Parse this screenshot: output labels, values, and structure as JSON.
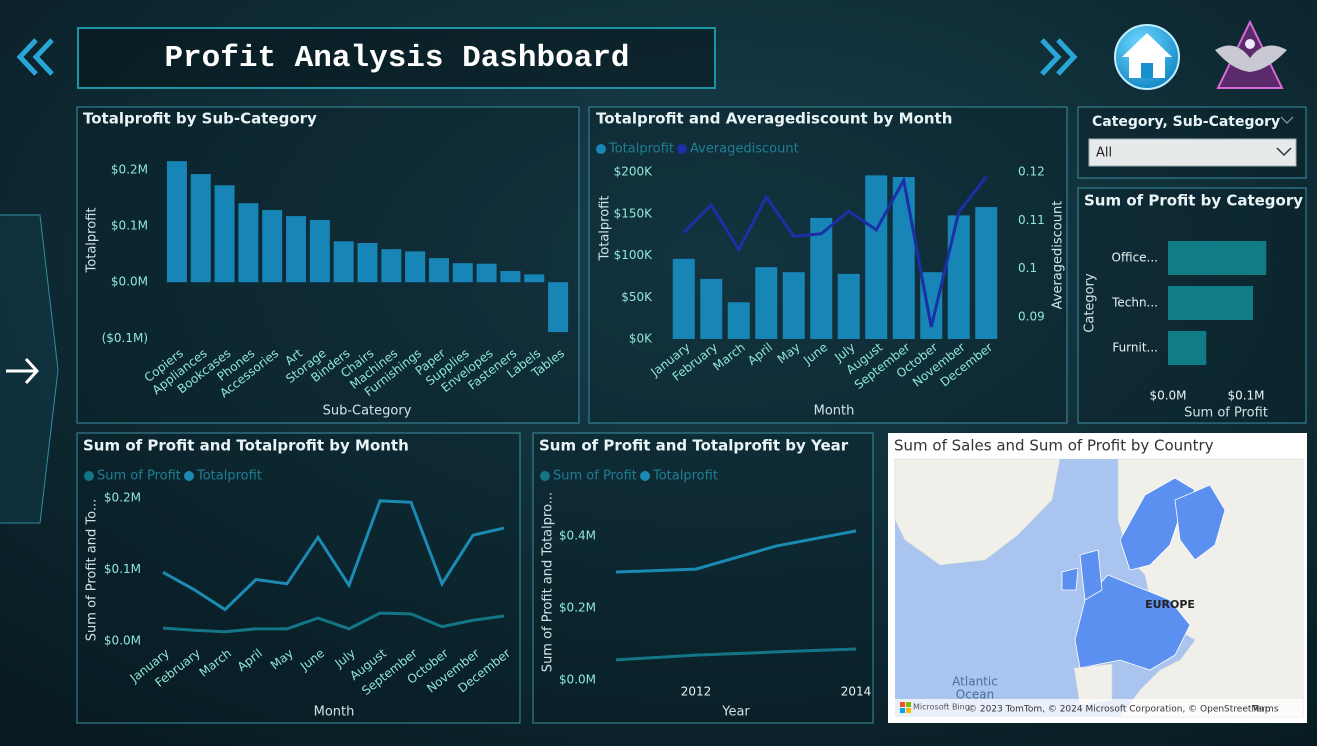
{
  "header": {
    "title": "Profit Analysis Dashboard"
  },
  "slicer": {
    "label": "Category, Sub-Category",
    "value": "All"
  },
  "chart_data": [
    {
      "type": "bar",
      "title": "Totalprofit by Sub-Category",
      "x_label": "Sub-Category",
      "y_label": "Totalprofit",
      "color": "#1786b6",
      "categories": [
        "Copiers",
        "Appliances",
        "Bookcases",
        "Phones",
        "Accessories",
        "Art",
        "Storage",
        "Binders",
        "Chairs",
        "Machines",
        "Furnishings",
        "Paper",
        "Supplies",
        "Envelopes",
        "Fasteners",
        "Labels",
        "Tables"
      ],
      "values": [
        216000,
        193000,
        173000,
        141000,
        129000,
        118000,
        111000,
        73000,
        70000,
        59000,
        55000,
        43000,
        34000,
        33000,
        20000,
        14000,
        -89000
      ],
      "ylim": [
        -112000,
        227000
      ],
      "yticks": [
        {
          "value": -100000,
          "label": "($0.1M)"
        },
        {
          "value": 0,
          "label": "$0.0M"
        },
        {
          "value": 100000,
          "label": "$0.1M"
        },
        {
          "value": 200000,
          "label": "$0.2M"
        }
      ]
    },
    {
      "type": "combo",
      "title": "Totalprofit and Averagediscount by Month",
      "x_label": "Month",
      "y_label": "Totalprofit",
      "y2_label": "Averagediscount",
      "categories": [
        "January",
        "February",
        "March",
        "April",
        "May",
        "June",
        "July",
        "August",
        "September",
        "October",
        "November",
        "December"
      ],
      "series": [
        {
          "name": "Totalprofit",
          "color": "#1786b6",
          "kind": "bar",
          "values": [
            96000,
            72000,
            44000,
            86000,
            80000,
            145000,
            78000,
            196000,
            194000,
            80000,
            148000,
            158000
          ]
        },
        {
          "name": "Averagediscount",
          "color": "#1b2fa6",
          "kind": "line",
          "axis": "y2",
          "values": [
            0.1074,
            0.1132,
            0.1039,
            0.1148,
            0.1067,
            0.1072,
            0.1119,
            0.108,
            0.1183,
            0.0879,
            0.1117,
            0.119
          ]
        }
      ],
      "ylim": [
        0,
        200000
      ],
      "yticks": [
        {
          "value": 0,
          "label": "$0K"
        },
        {
          "value": 50000,
          "label": "$50K"
        },
        {
          "value": 100000,
          "label": "$100K"
        },
        {
          "value": 150000,
          "label": "$150K"
        },
        {
          "value": 200000,
          "label": "$200K"
        }
      ],
      "y2lim": [
        0.0854,
        0.12
      ],
      "y2ticks": [
        0.09,
        0.1,
        0.11,
        0.12
      ]
    },
    {
      "type": "hbar",
      "title": "Sum of Profit by Category",
      "x_label": "Sum of Profit",
      "y_label": "Category",
      "color": "#0f7c86",
      "categories": [
        "Office...",
        "Techn...",
        "Furnit..."
      ],
      "values": [
        126000,
        109000,
        49000
      ],
      "xlim": [
        0,
        150000
      ],
      "xticks": [
        {
          "value": 0,
          "label": "$0.0M"
        },
        {
          "value": 100000,
          "label": "$0.1M"
        }
      ]
    },
    {
      "type": "line",
      "title": "Sum of Profit and Totalprofit by Month",
      "x_label": "Month",
      "y_label": "Sum of Profit and To...",
      "categories": [
        "January",
        "February",
        "March",
        "April",
        "May",
        "June",
        "July",
        "August",
        "September",
        "October",
        "November",
        "December"
      ],
      "series": [
        {
          "name": "Sum of Profit",
          "color": "#137585",
          "values": [
            18000,
            15000,
            13000,
            17000,
            17000,
            32000,
            17000,
            39000,
            38000,
            20000,
            29000,
            35000
          ]
        },
        {
          "name": "Totalprofit",
          "color": "#1b8bb3",
          "values": [
            96000,
            72000,
            44000,
            86000,
            80000,
            145000,
            78000,
            196000,
            194000,
            80000,
            148000,
            158000
          ]
        }
      ],
      "ylim": [
        0,
        200000
      ],
      "yticks": [
        {
          "value": 0,
          "label": "$0.0M"
        },
        {
          "value": 100000,
          "label": "$0.1M"
        },
        {
          "value": 200000,
          "label": "$0.2M"
        }
      ]
    },
    {
      "type": "line",
      "title": "Sum of Profit and Totalprofit by Year",
      "x_label": "Year",
      "y_label": "Sum of Profit and Totalpro...",
      "x": [
        2011,
        2012,
        2013,
        2014
      ],
      "series": [
        {
          "name": "Sum of Profit",
          "color": "#137585",
          "values": [
            56000,
            69000,
            78000,
            86000
          ]
        },
        {
          "name": "Totalprofit",
          "color": "#1b8bb3",
          "values": [
            300000,
            308000,
            372000,
            414000
          ]
        }
      ],
      "xlim": [
        2011,
        2014
      ],
      "xticks": [
        2012,
        2014
      ],
      "ylim": [
        0,
        400000
      ],
      "yticks": [
        {
          "value": 0,
          "label": "$0.0M"
        },
        {
          "value": 200000,
          "label": "$0.2M"
        },
        {
          "value": 400000,
          "label": "$0.4M"
        }
      ]
    }
  ],
  "map": {
    "title": "Sum of Sales and Sum of Profit by Country",
    "labels": [
      "EUROPE",
      "Atlantic",
      "Ocean"
    ],
    "brand": "Microsoft Bing",
    "attribution": "© 2023 TomTom, © 2024 Microsoft Corporation, © OpenStreetMap",
    "terms": "Terms"
  }
}
